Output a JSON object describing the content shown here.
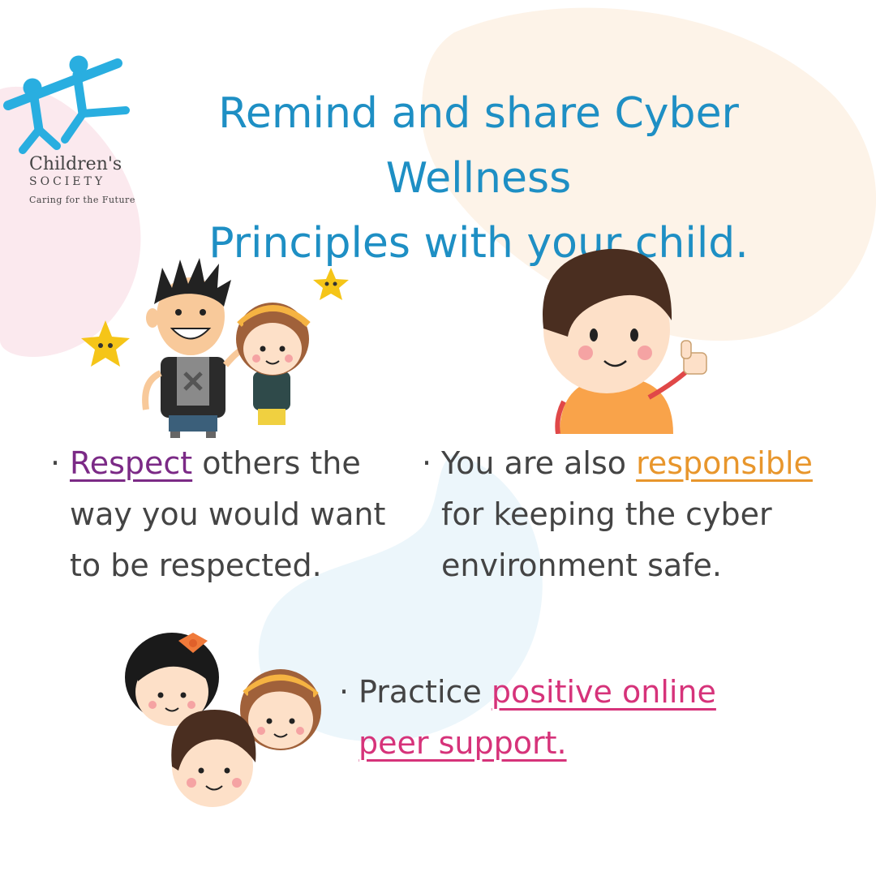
{
  "brand": {
    "name": "Children's",
    "sub": "SOCIETY",
    "tagline": "Caring for the Future",
    "logo_color": "#29aee0"
  },
  "title": {
    "line1": "Remind and share Cyber Wellness",
    "line2": "Principles with your child."
  },
  "bullets": [
    {
      "marker": "·",
      "highlight": "Respect",
      "after": " others the",
      "line2": "way you would want",
      "line3": "to be respected.",
      "highlight_color": "#7b2a86"
    },
    {
      "marker": "·",
      "before": "You are also ",
      "highlight": "responsible",
      "line2": "for keeping the cyber",
      "line3": "environment safe.",
      "highlight_color": "#e8962c"
    },
    {
      "marker": "·",
      "before": "Practice ",
      "highlight": "positive online",
      "line2": "peer support.",
      "highlight_color": "#d6337a"
    }
  ],
  "colors": {
    "title": "#1e8fc4",
    "body_text": "#444444"
  }
}
